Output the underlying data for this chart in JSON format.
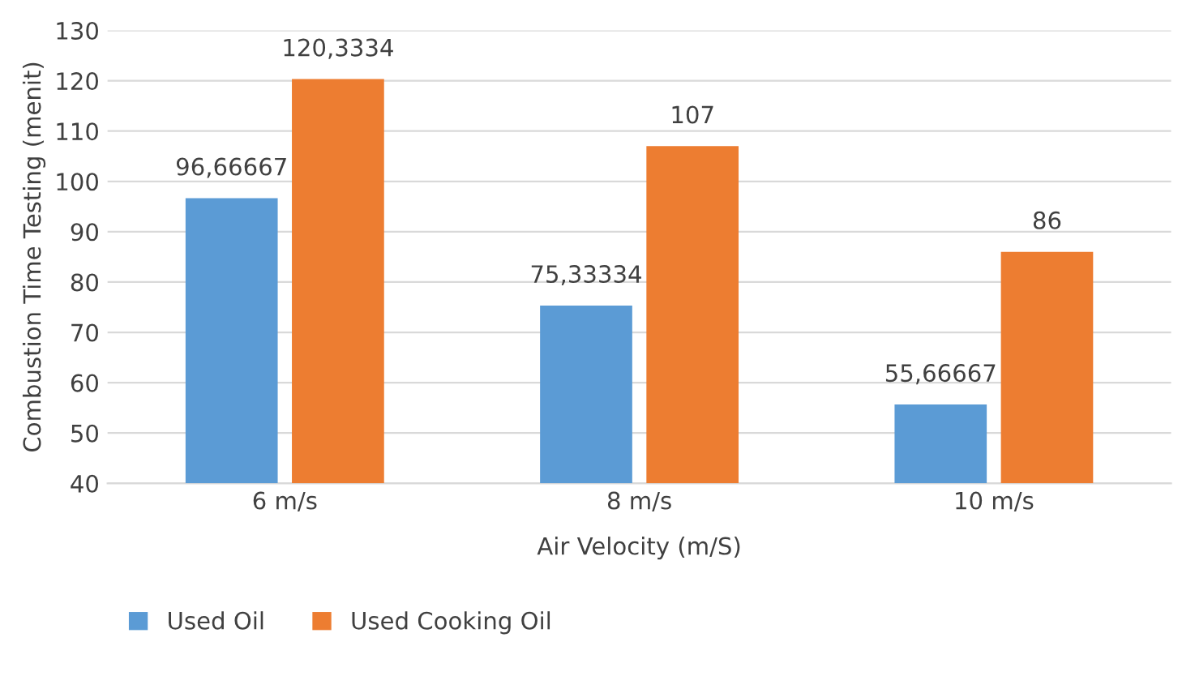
{
  "chart_data": {
    "type": "bar",
    "xlabel": "Air Velocity (m/S)",
    "ylabel": "Combustion Time Testing (menit)",
    "categories": [
      "6 m/s",
      "8 m/s",
      "10 m/s"
    ],
    "series": [
      {
        "name": "Used Oil",
        "color": "#5b9bd5",
        "values": [
          96.66667,
          75.33334,
          55.66667
        ],
        "value_labels": [
          "96,66667",
          "75,33334",
          "55,66667"
        ]
      },
      {
        "name": "Used Cooking Oil",
        "color": "#ed7d31",
        "values": [
          120.3334,
          107,
          86
        ],
        "value_labels": [
          "120,3334",
          "107",
          "86"
        ]
      }
    ],
    "ylim": [
      40,
      130
    ],
    "yticks": [
      40,
      50,
      60,
      70,
      80,
      90,
      100,
      110,
      120,
      130
    ],
    "grid": "y",
    "legend": "bottom"
  }
}
